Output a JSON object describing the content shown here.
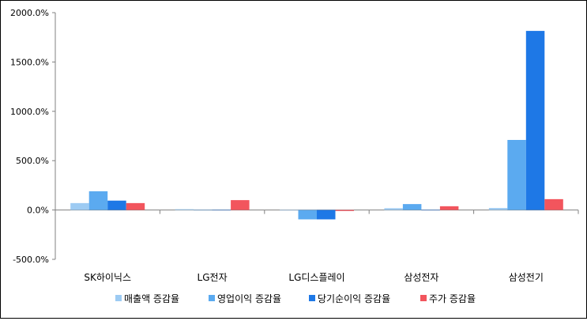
{
  "chart_data": {
    "type": "bar",
    "categories": [
      "SK하이닉스",
      "LG전자",
      "LG디스플레이",
      "삼성전자",
      "삼성전기"
    ],
    "series": [
      {
        "name": "매출액 증감율",
        "color": "#9DCBF3",
        "values": [
          70,
          8,
          -5,
          18,
          20
        ]
      },
      {
        "name": "영업이익 증감율",
        "color": "#5BAAF0",
        "values": [
          190,
          -2,
          -95,
          60,
          710
        ]
      },
      {
        "name": "당기순이익 증감율",
        "color": "#1E78E6",
        "values": [
          95,
          -3,
          -95,
          -2,
          1815
        ]
      },
      {
        "name": "주가 증감율",
        "color": "#F2555D",
        "values": [
          70,
          100,
          -10,
          38,
          110
        ]
      }
    ],
    "yticks": [
      "2000.0%",
      "1500.0%",
      "1000.0%",
      "500.0%",
      "0.0%",
      "-500.0%"
    ],
    "ylim": [
      -500,
      2000
    ],
    "grid": false,
    "legend": "bottom"
  }
}
